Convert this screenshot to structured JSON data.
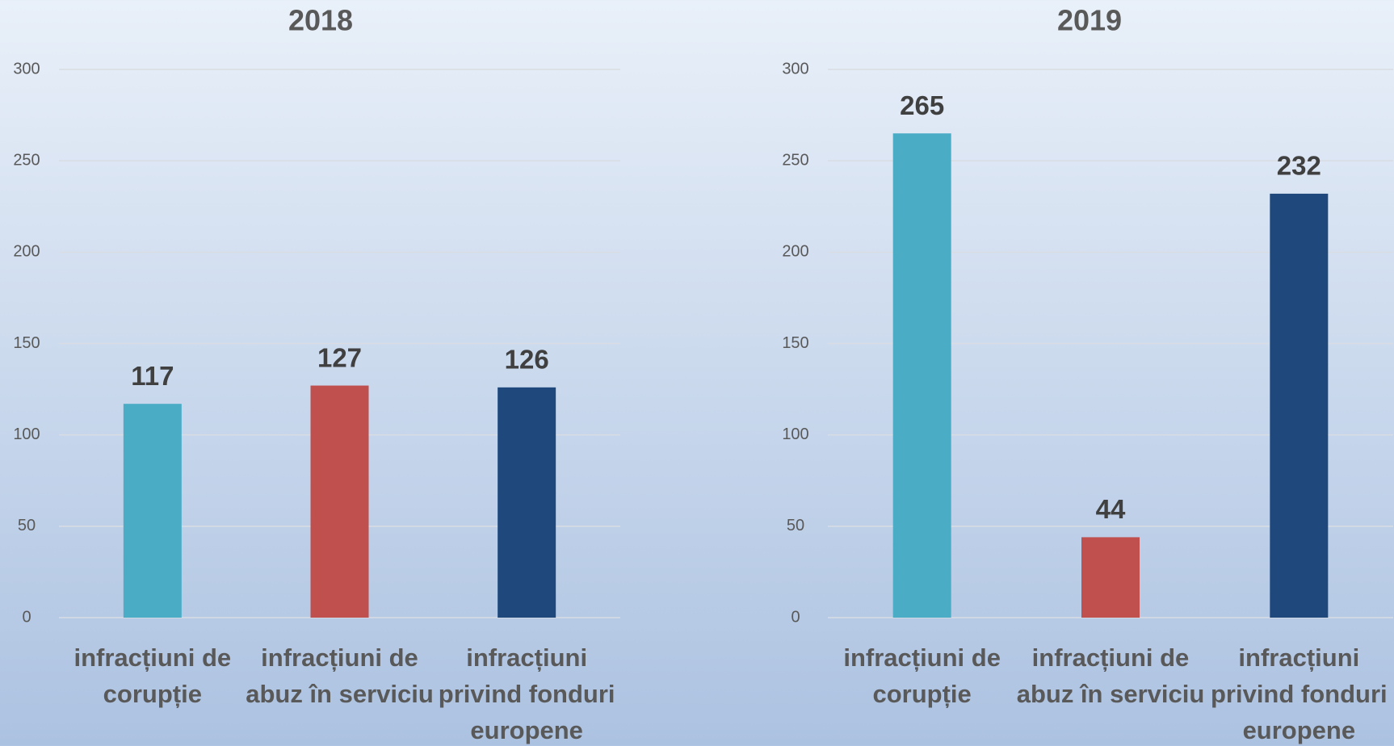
{
  "chart_data": [
    {
      "type": "bar",
      "title": "2018",
      "categories": [
        "infracțiuni de corupție",
        "infracțiuni de abuz în serviciu",
        "infracțiuni privind fonduri europene"
      ],
      "values": [
        117,
        127,
        126
      ],
      "colors": [
        "#4bacc6",
        "#c0504d",
        "#1f497d"
      ],
      "ylim": [
        0,
        300
      ],
      "yticks": [
        0,
        50,
        100,
        150,
        200,
        250,
        300
      ],
      "grid": true
    },
    {
      "type": "bar",
      "title": "2019",
      "categories": [
        "infracțiuni de corupție",
        "infracțiuni de abuz în serviciu",
        "infracțiuni privind fonduri europene"
      ],
      "values": [
        265,
        44,
        232
      ],
      "colors": [
        "#4bacc6",
        "#c0504d",
        "#1f497d"
      ],
      "ylim": [
        0,
        300
      ],
      "yticks": [
        0,
        50,
        100,
        150,
        200,
        250,
        300
      ],
      "grid": true
    }
  ]
}
